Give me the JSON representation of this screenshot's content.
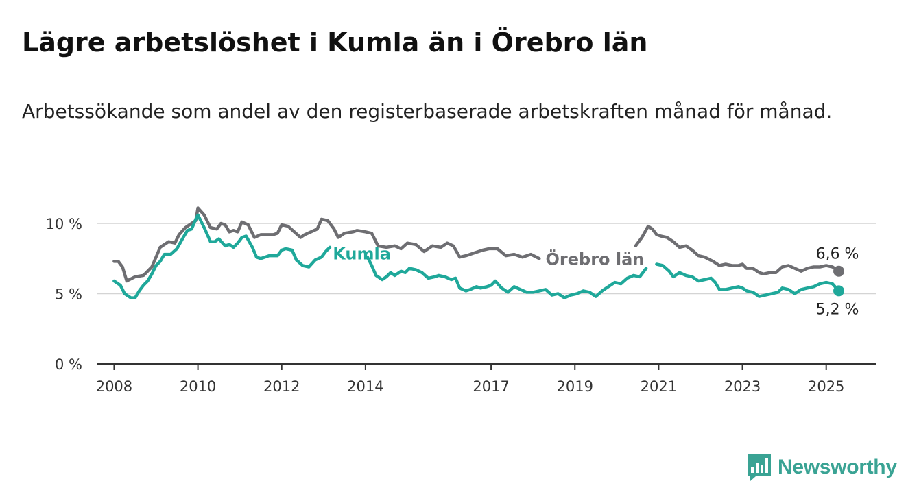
{
  "title": "Lägre arbetslöshet i Kumla än i Örebro län",
  "subtitle": "Arbetssökande som andel av den registerbaserade arbetskraften månad för månad.",
  "brand": {
    "name": "Newsworthy",
    "icon": "bar-chart-logo-icon",
    "color": "#3aa394"
  },
  "chart_data": {
    "type": "line",
    "xlabel": "",
    "ylabel": "",
    "xlim": [
      2007.6,
      2026.2
    ],
    "ylim": [
      0,
      10
    ],
    "grid": true,
    "y_ticks": [
      0,
      5,
      10
    ],
    "y_tick_labels": [
      "0 %",
      "5 %",
      "10 %"
    ],
    "x_ticks": [
      2008,
      2010,
      2012,
      2014,
      2017,
      2019,
      2021,
      2023,
      2025
    ],
    "x_tick_labels": [
      "2008",
      "2010",
      "2012",
      "2014",
      "2017",
      "2019",
      "2021",
      "2023",
      "2025"
    ],
    "series": [
      {
        "name": "Örebro län",
        "color": "#6e6e72",
        "end_label": "6,6 %",
        "points": [
          [
            2008.0,
            7.3
          ],
          [
            2008.1,
            7.3
          ],
          [
            2008.2,
            6.9
          ],
          [
            2008.3,
            5.9
          ],
          [
            2008.5,
            6.2
          ],
          [
            2008.7,
            6.3
          ],
          [
            2008.9,
            6.9
          ],
          [
            2009.0,
            7.6
          ],
          [
            2009.1,
            8.3
          ],
          [
            2009.3,
            8.7
          ],
          [
            2009.45,
            8.6
          ],
          [
            2009.55,
            9.2
          ],
          [
            2009.7,
            9.7
          ],
          [
            2009.85,
            10.0
          ],
          [
            2009.95,
            10.2
          ],
          [
            2010.0,
            11.1
          ],
          [
            2010.15,
            10.6
          ],
          [
            2010.3,
            9.7
          ],
          [
            2010.45,
            9.6
          ],
          [
            2010.55,
            10.0
          ],
          [
            2010.65,
            9.9
          ],
          [
            2010.75,
            9.4
          ],
          [
            2010.85,
            9.5
          ],
          [
            2010.95,
            9.4
          ],
          [
            2011.05,
            10.1
          ],
          [
            2011.2,
            9.9
          ],
          [
            2011.35,
            9.0
          ],
          [
            2011.5,
            9.2
          ],
          [
            2011.8,
            9.2
          ],
          [
            2011.9,
            9.3
          ],
          [
            2012.0,
            9.9
          ],
          [
            2012.15,
            9.8
          ],
          [
            2012.3,
            9.4
          ],
          [
            2012.45,
            9.0
          ],
          [
            2012.55,
            9.2
          ],
          [
            2012.7,
            9.4
          ],
          [
            2012.85,
            9.6
          ],
          [
            2012.95,
            10.3
          ],
          [
            2013.1,
            10.2
          ],
          [
            2013.25,
            9.6
          ],
          [
            2013.35,
            9.0
          ],
          [
            2013.5,
            9.3
          ],
          [
            2013.7,
            9.4
          ],
          [
            2013.8,
            9.5
          ],
          [
            2014.0,
            9.4
          ],
          [
            2014.15,
            9.3
          ],
          [
            2014.3,
            8.4
          ],
          [
            2014.5,
            8.3
          ],
          [
            2014.7,
            8.4
          ],
          [
            2014.85,
            8.2
          ],
          [
            2015.0,
            8.6
          ],
          [
            2015.2,
            8.5
          ],
          [
            2015.4,
            8.0
          ],
          [
            2015.6,
            8.4
          ],
          [
            2015.8,
            8.3
          ],
          [
            2015.95,
            8.6
          ],
          [
            2016.1,
            8.4
          ],
          [
            2016.25,
            7.6
          ],
          [
            2016.4,
            7.7
          ],
          [
            2016.6,
            7.9
          ],
          [
            2016.8,
            8.1
          ],
          [
            2016.95,
            8.2
          ],
          [
            2017.15,
            8.2
          ],
          [
            2017.35,
            7.7
          ],
          [
            2017.55,
            7.8
          ],
          [
            2017.75,
            7.6
          ],
          [
            2017.95,
            7.8
          ],
          [
            2018.15,
            7.5
          ]
        ],
        "points_segment_2": [
          [
            2020.45,
            8.4
          ],
          [
            2020.6,
            9.0
          ],
          [
            2020.75,
            9.8
          ],
          [
            2020.85,
            9.6
          ],
          [
            2020.95,
            9.2
          ],
          [
            2021.05,
            9.1
          ],
          [
            2021.2,
            9.0
          ],
          [
            2021.35,
            8.7
          ],
          [
            2021.5,
            8.3
          ],
          [
            2021.65,
            8.4
          ],
          [
            2021.8,
            8.1
          ],
          [
            2021.95,
            7.7
          ],
          [
            2022.1,
            7.6
          ],
          [
            2022.3,
            7.3
          ],
          [
            2022.45,
            7.0
          ],
          [
            2022.6,
            7.1
          ],
          [
            2022.75,
            7.0
          ],
          [
            2022.9,
            7.0
          ],
          [
            2023.0,
            7.1
          ],
          [
            2023.1,
            6.8
          ],
          [
            2023.25,
            6.8
          ],
          [
            2023.4,
            6.5
          ],
          [
            2023.5,
            6.4
          ],
          [
            2023.65,
            6.5
          ],
          [
            2023.8,
            6.5
          ],
          [
            2023.95,
            6.9
          ],
          [
            2024.1,
            7.0
          ],
          [
            2024.25,
            6.8
          ],
          [
            2024.4,
            6.6
          ],
          [
            2024.55,
            6.8
          ],
          [
            2024.7,
            6.9
          ],
          [
            2024.85,
            6.9
          ],
          [
            2025.0,
            7.0
          ],
          [
            2025.15,
            6.9
          ],
          [
            2025.3,
            6.6
          ]
        ]
      },
      {
        "name": "Kumla",
        "color": "#1fa89a",
        "end_label": "5,2 %",
        "points": [
          [
            2008.0,
            5.9
          ],
          [
            2008.15,
            5.6
          ],
          [
            2008.25,
            5.0
          ],
          [
            2008.4,
            4.7
          ],
          [
            2008.5,
            4.7
          ],
          [
            2008.6,
            5.2
          ],
          [
            2008.7,
            5.6
          ],
          [
            2008.8,
            5.9
          ],
          [
            2008.9,
            6.4
          ],
          [
            2009.0,
            7.0
          ],
          [
            2009.1,
            7.3
          ],
          [
            2009.2,
            7.8
          ],
          [
            2009.35,
            7.8
          ],
          [
            2009.5,
            8.2
          ],
          [
            2009.65,
            9.0
          ],
          [
            2009.75,
            9.5
          ],
          [
            2009.85,
            9.6
          ],
          [
            2009.95,
            10.3
          ],
          [
            2010.0,
            10.6
          ],
          [
            2010.15,
            9.7
          ],
          [
            2010.3,
            8.7
          ],
          [
            2010.4,
            8.7
          ],
          [
            2010.5,
            8.9
          ],
          [
            2010.65,
            8.4
          ],
          [
            2010.75,
            8.5
          ],
          [
            2010.85,
            8.3
          ],
          [
            2010.95,
            8.6
          ],
          [
            2011.05,
            9.0
          ],
          [
            2011.15,
            9.1
          ],
          [
            2011.3,
            8.3
          ],
          [
            2011.4,
            7.6
          ],
          [
            2011.5,
            7.5
          ],
          [
            2011.7,
            7.7
          ],
          [
            2011.9,
            7.7
          ],
          [
            2012.0,
            8.1
          ],
          [
            2012.1,
            8.2
          ],
          [
            2012.25,
            8.1
          ],
          [
            2012.35,
            7.4
          ],
          [
            2012.5,
            7.0
          ],
          [
            2012.65,
            6.9
          ],
          [
            2012.8,
            7.4
          ],
          [
            2012.95,
            7.6
          ],
          [
            2013.05,
            8.0
          ],
          [
            2013.15,
            8.3
          ]
        ],
        "points_segment_2": [
          [
            2014.05,
            7.6
          ],
          [
            2014.15,
            7.0
          ],
          [
            2014.25,
            6.3
          ],
          [
            2014.4,
            6.0
          ],
          [
            2014.5,
            6.2
          ],
          [
            2014.6,
            6.5
          ],
          [
            2014.7,
            6.3
          ],
          [
            2014.85,
            6.6
          ],
          [
            2014.95,
            6.5
          ],
          [
            2015.05,
            6.8
          ],
          [
            2015.2,
            6.7
          ],
          [
            2015.35,
            6.5
          ],
          [
            2015.5,
            6.1
          ],
          [
            2015.65,
            6.2
          ],
          [
            2015.75,
            6.3
          ],
          [
            2015.9,
            6.2
          ],
          [
            2016.05,
            6.0
          ],
          [
            2016.15,
            6.1
          ],
          [
            2016.25,
            5.4
          ],
          [
            2016.4,
            5.2
          ],
          [
            2016.5,
            5.3
          ],
          [
            2016.65,
            5.5
          ],
          [
            2016.75,
            5.4
          ],
          [
            2016.9,
            5.5
          ],
          [
            2017.0,
            5.6
          ],
          [
            2017.1,
            5.9
          ],
          [
            2017.25,
            5.4
          ],
          [
            2017.4,
            5.1
          ],
          [
            2017.55,
            5.5
          ],
          [
            2017.7,
            5.3
          ],
          [
            2017.85,
            5.1
          ],
          [
            2018.0,
            5.1
          ],
          [
            2018.15,
            5.2
          ],
          [
            2018.3,
            5.3
          ],
          [
            2018.45,
            4.9
          ],
          [
            2018.6,
            5.0
          ],
          [
            2018.75,
            4.7
          ],
          [
            2018.9,
            4.9
          ],
          [
            2019.05,
            5.0
          ],
          [
            2019.2,
            5.2
          ],
          [
            2019.35,
            5.1
          ],
          [
            2019.5,
            4.8
          ],
          [
            2019.65,
            5.2
          ],
          [
            2019.8,
            5.5
          ],
          [
            2019.95,
            5.8
          ],
          [
            2020.1,
            5.7
          ],
          [
            2020.25,
            6.1
          ],
          [
            2020.4,
            6.3
          ],
          [
            2020.55,
            6.2
          ],
          [
            2020.7,
            6.8
          ]
        ],
        "points_segment_3": [
          [
            2020.95,
            7.1
          ],
          [
            2021.1,
            7.0
          ],
          [
            2021.25,
            6.6
          ],
          [
            2021.35,
            6.2
          ],
          [
            2021.5,
            6.5
          ],
          [
            2021.65,
            6.3
          ],
          [
            2021.8,
            6.2
          ],
          [
            2021.95,
            5.9
          ],
          [
            2022.1,
            6.0
          ],
          [
            2022.25,
            6.1
          ],
          [
            2022.35,
            5.8
          ],
          [
            2022.45,
            5.3
          ],
          [
            2022.6,
            5.3
          ],
          [
            2022.75,
            5.4
          ],
          [
            2022.9,
            5.5
          ],
          [
            2023.0,
            5.4
          ],
          [
            2023.1,
            5.2
          ],
          [
            2023.25,
            5.1
          ],
          [
            2023.4,
            4.8
          ],
          [
            2023.55,
            4.9
          ],
          [
            2023.7,
            5.0
          ],
          [
            2023.85,
            5.1
          ],
          [
            2023.95,
            5.4
          ],
          [
            2024.1,
            5.3
          ],
          [
            2024.25,
            5.0
          ],
          [
            2024.4,
            5.3
          ],
          [
            2024.55,
            5.4
          ],
          [
            2024.7,
            5.5
          ],
          [
            2024.85,
            5.7
          ],
          [
            2025.0,
            5.8
          ],
          [
            2025.15,
            5.7
          ],
          [
            2025.3,
            5.2
          ]
        ]
      }
    ]
  }
}
